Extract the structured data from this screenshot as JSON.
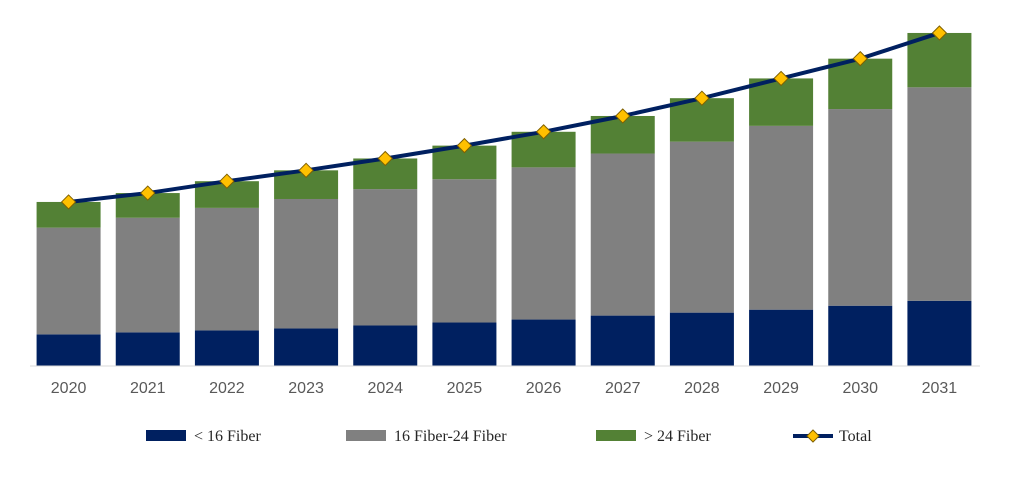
{
  "chart_data": {
    "type": "bar",
    "stacked": true,
    "categories": [
      "2020",
      "2021",
      "2022",
      "2023",
      "2024",
      "2025",
      "2026",
      "2027",
      "2028",
      "2029",
      "2030",
      "2031"
    ],
    "series": [
      {
        "name": "< 16 Fiber",
        "color": "#002060",
        "values": [
          32,
          34,
          36,
          38,
          41,
          44,
          47,
          51,
          54,
          57,
          61,
          66
        ]
      },
      {
        "name": "16 Fiber-24 Fiber",
        "color": "#808080",
        "values": [
          108,
          116,
          124,
          131,
          138,
          145,
          154,
          164,
          173,
          186,
          199,
          216
        ]
      },
      {
        "name": "> 24 Fiber",
        "color": "#538135",
        "values": [
          26,
          25,
          27,
          29,
          31,
          34,
          36,
          38,
          44,
          48,
          51,
          55
        ]
      }
    ],
    "total": {
      "name": "Total",
      "line_color": "#002060",
      "marker_color": "#FFC000",
      "values": [
        166,
        175,
        187,
        198,
        210,
        223,
        237,
        253,
        271,
        291,
        311,
        337
      ]
    },
    "ylim": [
      0,
      340
    ],
    "grid": false,
    "legend_position": "bottom",
    "title": "",
    "xlabel": "",
    "ylabel": ""
  }
}
